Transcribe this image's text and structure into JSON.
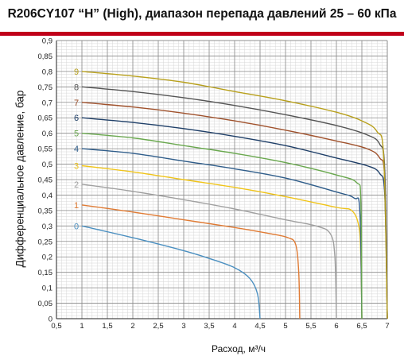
{
  "chart_data": {
    "type": "line",
    "title": "R206CY107 “H” (High), диапазон перепада давлений 25 – 60 кПа",
    "xlabel": "Расход, м³/ч",
    "ylabel": "Дифференциальное давление, бар",
    "xlim": [
      0.5,
      7
    ],
    "ylim": [
      0,
      0.9
    ],
    "x_ticks": [
      "0,5",
      "1",
      "1,5",
      "2",
      "2,5",
      "3",
      "3,5",
      "4",
      "4,5",
      "5",
      "5,5",
      "6",
      "6,5",
      "7"
    ],
    "y_ticks": [
      "0",
      "0,05",
      "0,1",
      "0,15",
      "0,2",
      "0,25",
      "0,3",
      "0,35",
      "0,4",
      "0,45",
      "0,5",
      "0,55",
      "0,6",
      "0,65",
      "0,7",
      "0,75",
      "0,8",
      "0,85",
      "0,9"
    ],
    "grid": true,
    "series": [
      {
        "name": "0",
        "color": "#4a8fc0",
        "points": [
          [
            1,
            0.3
          ],
          [
            2,
            0.262
          ],
          [
            3,
            0.22
          ],
          [
            3.5,
            0.195
          ],
          [
            4,
            0.165
          ],
          [
            4.3,
            0.13
          ],
          [
            4.45,
            0.08
          ],
          [
            4.5,
            0.0
          ]
        ]
      },
      {
        "name": "1",
        "color": "#e07b34",
        "points": [
          [
            1,
            0.368
          ],
          [
            2,
            0.345
          ],
          [
            3,
            0.32
          ],
          [
            4,
            0.295
          ],
          [
            4.7,
            0.275
          ],
          [
            5.05,
            0.262
          ],
          [
            5.2,
            0.24
          ],
          [
            5.26,
            0.15
          ],
          [
            5.28,
            0.0
          ]
        ]
      },
      {
        "name": "2",
        "color": "#a0a0a0",
        "points": [
          [
            1,
            0.435
          ],
          [
            2,
            0.412
          ],
          [
            3,
            0.385
          ],
          [
            4,
            0.355
          ],
          [
            5,
            0.32
          ],
          [
            5.6,
            0.3
          ],
          [
            5.88,
            0.275
          ],
          [
            5.97,
            0.2
          ],
          [
            6.0,
            0.0
          ]
        ]
      },
      {
        "name": "3",
        "color": "#f0c419",
        "points": [
          [
            1,
            0.495
          ],
          [
            2,
            0.475
          ],
          [
            3,
            0.45
          ],
          [
            4,
            0.425
          ],
          [
            5,
            0.395
          ],
          [
            6,
            0.36
          ],
          [
            6.3,
            0.35
          ],
          [
            6.44,
            0.3
          ],
          [
            6.48,
            0.2
          ],
          [
            6.5,
            0.0
          ]
        ]
      },
      {
        "name": "4",
        "color": "#2f5d8a",
        "points": [
          [
            1,
            0.55
          ],
          [
            2,
            0.535
          ],
          [
            3,
            0.51
          ],
          [
            4,
            0.485
          ],
          [
            5,
            0.455
          ],
          [
            6,
            0.41
          ],
          [
            6.35,
            0.39
          ],
          [
            6.46,
            0.35
          ],
          [
            6.5,
            0.0
          ]
        ]
      },
      {
        "name": "5",
        "color": "#6aa84f",
        "points": [
          [
            1,
            0.6
          ],
          [
            2,
            0.585
          ],
          [
            3,
            0.56
          ],
          [
            4,
            0.535
          ],
          [
            5,
            0.505
          ],
          [
            6,
            0.465
          ],
          [
            6.4,
            0.44
          ],
          [
            6.48,
            0.38
          ],
          [
            6.5,
            0.0
          ]
        ]
      },
      {
        "name": "6",
        "color": "#1f3f68",
        "points": [
          [
            1,
            0.65
          ],
          [
            2,
            0.635
          ],
          [
            3,
            0.615
          ],
          [
            4,
            0.59
          ],
          [
            5,
            0.56
          ],
          [
            6,
            0.52
          ],
          [
            6.6,
            0.495
          ],
          [
            6.85,
            0.47
          ],
          [
            6.95,
            0.4
          ],
          [
            7.0,
            0.0
          ]
        ]
      },
      {
        "name": "7",
        "color": "#a0522d",
        "points": [
          [
            1,
            0.7
          ],
          [
            2,
            0.685
          ],
          [
            3,
            0.665
          ],
          [
            4,
            0.64
          ],
          [
            5,
            0.61
          ],
          [
            6,
            0.575
          ],
          [
            6.6,
            0.55
          ],
          [
            6.85,
            0.52
          ],
          [
            6.95,
            0.45
          ],
          [
            7.0,
            0.0
          ]
        ]
      },
      {
        "name": "8",
        "color": "#555555",
        "points": [
          [
            1,
            0.75
          ],
          [
            2,
            0.735
          ],
          [
            3,
            0.715
          ],
          [
            4,
            0.69
          ],
          [
            5,
            0.66
          ],
          [
            6,
            0.625
          ],
          [
            6.6,
            0.595
          ],
          [
            6.85,
            0.565
          ],
          [
            6.95,
            0.48
          ],
          [
            7.0,
            0.0
          ]
        ]
      },
      {
        "name": "9",
        "color": "#b8a01c",
        "points": [
          [
            1,
            0.8
          ],
          [
            2,
            0.785
          ],
          [
            3,
            0.765
          ],
          [
            4,
            0.735
          ],
          [
            5,
            0.705
          ],
          [
            6,
            0.668
          ],
          [
            6.5,
            0.64
          ],
          [
            6.8,
            0.605
          ],
          [
            6.93,
            0.52
          ],
          [
            7.0,
            0.0
          ]
        ]
      }
    ],
    "colors": {
      "title_rule": "#c0001a",
      "grid_minor": "#d6d6d6",
      "grid_major": "#8a8a8a",
      "axis": "#222222"
    }
  }
}
